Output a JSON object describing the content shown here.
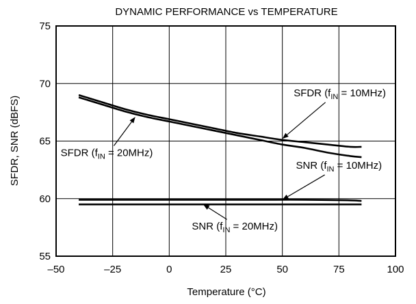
{
  "chart_data": {
    "type": "line",
    "title": "DYNAMIC PERFORMANCE vs TEMPERATURE",
    "xlabel": "Temperature (°C)",
    "ylabel": "SFDR, SNR (dBFS)",
    "xlim": [
      -50,
      100
    ],
    "ylim": [
      55,
      75
    ],
    "xticks": [
      -50,
      -25,
      0,
      25,
      50,
      75,
      100
    ],
    "xtick_labels": [
      "–50",
      "–25",
      "0",
      "25",
      "50",
      "75",
      "100"
    ],
    "yticks": [
      55,
      60,
      65,
      70,
      75
    ],
    "ytick_labels": [
      "55",
      "60",
      "65",
      "70",
      "75"
    ],
    "grid": true,
    "series": [
      {
        "name": "SFDR (fIN = 10MHz)",
        "x": [
          -40,
          -30,
          -20,
          -10,
          0,
          10,
          20,
          30,
          40,
          50,
          60,
          70,
          80,
          85
        ],
        "y": [
          69.0,
          68.4,
          67.8,
          67.3,
          66.9,
          66.5,
          66.1,
          65.7,
          65.4,
          65.1,
          64.9,
          64.7,
          64.5,
          64.5
        ]
      },
      {
        "name": "SFDR (fIN = 20MHz)",
        "x": [
          -40,
          -30,
          -20,
          -10,
          0,
          10,
          20,
          30,
          40,
          50,
          60,
          70,
          80,
          85
        ],
        "y": [
          68.8,
          68.2,
          67.6,
          67.1,
          66.7,
          66.3,
          65.9,
          65.5,
          65.1,
          64.7,
          64.4,
          64.0,
          63.7,
          63.6
        ]
      },
      {
        "name": "SNR (fIN = 10MHz)",
        "x": [
          -40,
          -20,
          0,
          20,
          40,
          60,
          80,
          85
        ],
        "y": [
          59.9,
          59.9,
          59.9,
          59.9,
          59.9,
          59.9,
          59.85,
          59.8
        ]
      },
      {
        "name": "SNR (fIN = 20MHz)",
        "x": [
          -40,
          -20,
          0,
          20,
          40,
          60,
          80,
          85
        ],
        "y": [
          59.5,
          59.5,
          59.5,
          59.5,
          59.5,
          59.5,
          59.5,
          59.5
        ]
      }
    ],
    "annotations": [
      {
        "main": "SFDR (f",
        "sub": "IN",
        "rest": " = 10MHz)",
        "x": 55,
        "y": 68.9,
        "arrow_to": [
          50,
          65.2
        ]
      },
      {
        "main": "SFDR (f",
        "sub": "IN",
        "rest": " = 20MHz)",
        "x": -48,
        "y": 63.7,
        "arrow_to": [
          -15,
          67.1
        ]
      },
      {
        "main": "SNR (f",
        "sub": "IN",
        "rest": " = 10MHz)",
        "x": 56,
        "y": 62.6,
        "arrow_to": [
          50,
          59.9
        ]
      },
      {
        "main": "SNR (f",
        "sub": "IN",
        "rest": " = 20MHz)",
        "x": 10,
        "y": 57.3,
        "arrow_to": [
          15,
          59.5
        ]
      }
    ]
  }
}
